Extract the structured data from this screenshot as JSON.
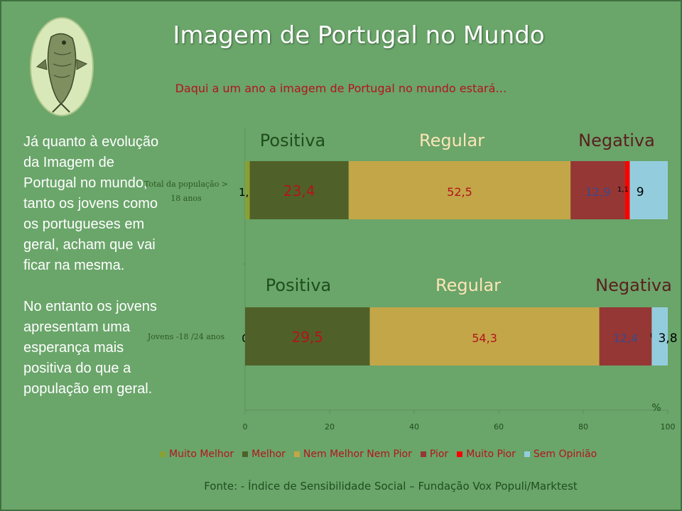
{
  "header": {
    "title": "Imagem de Portugal no Mundo",
    "subtitle": "Daqui a um ano a imagem de Portugal no mundo estará…"
  },
  "sidebar": {
    "paragraph1": "Já quanto à evolução da Imagem de Portugal no mundo, tanto os jovens como os portugueses em geral, acham que vai ficar na mesma.",
    "paragraph2": "No entanto os jovens apresentam uma esperança mais positiva do que a população em geral."
  },
  "footer": {
    "source": "Fonte: - Índice de Sensibilidade Social – Fundação Vox Populi/Marktest"
  },
  "chart_data": {
    "type": "bar",
    "orientation": "horizontal",
    "stacked": true,
    "categories": [
      "Total  da população > 18 anos",
      "Jovens -18 /24 anos"
    ],
    "category_lines": [
      [
        "Total  da população >",
        "18 anos"
      ],
      [
        "Jovens -18 /24 anos"
      ]
    ],
    "series": [
      {
        "name": "Muito Melhor",
        "values": [
          1.1,
          0
        ],
        "labels": [
          "1,1",
          "0"
        ],
        "color": "#8aa033"
      },
      {
        "name": "Melhor",
        "values": [
          23.4,
          29.5
        ],
        "labels": [
          "23,4",
          "29,5"
        ],
        "color": "#4f6128"
      },
      {
        "name": "Nem Melhor Nem Pior",
        "values": [
          52.5,
          54.3
        ],
        "labels": [
          "52,5",
          "54,3"
        ],
        "color": "#c3a648"
      },
      {
        "name": "Pior",
        "values": [
          12.9,
          12.4
        ],
        "labels": [
          "12,9",
          "12,4"
        ],
        "color": "#953735"
      },
      {
        "name": "Muito Pior",
        "values": [
          1.1,
          0
        ],
        "labels": [
          "1,1",
          "0"
        ],
        "color": "#ff0000"
      },
      {
        "name": "Sem Opinião",
        "values": [
          9,
          3.8
        ],
        "labels": [
          "9",
          "3,8"
        ],
        "color": "#93cddd"
      }
    ],
    "group_labels": [
      "Positiva",
      "Regular",
      "Negativa"
    ],
    "xlim": [
      0,
      100
    ],
    "xticks": [
      0,
      20,
      40,
      60,
      80,
      100
    ],
    "xlabel": "%",
    "legend": "bottom",
    "grid": false
  }
}
